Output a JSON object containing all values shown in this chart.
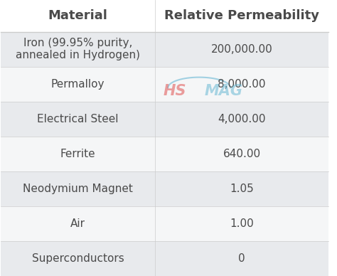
{
  "col1_header": "Material",
  "col2_header": "Relative Permeability",
  "rows": [
    [
      "Iron (99.95% purity,\nannealed in Hydrogen)",
      "200,000.00"
    ],
    [
      "Permalloy",
      "8,000.00"
    ],
    [
      "Electrical Steel",
      "4,000.00"
    ],
    [
      "Ferrite",
      "640.00"
    ],
    [
      "Neodymium Magnet",
      "1.05"
    ],
    [
      "Air",
      "1.00"
    ],
    [
      "Superconductors",
      "0"
    ]
  ],
  "header_bg": "#ffffff",
  "header_text_color": "#4a4a4a",
  "odd_row_bg": "#e8eaed",
  "even_row_bg": "#f5f6f7",
  "row_text_color": "#4a4a4a",
  "col_divider_color": "#cccccc",
  "row_divider_color": "#cccccc",
  "logo_hs_color": "#e05050",
  "logo_mag_color": "#6ab8d4",
  "font_size_header": 13,
  "font_size_row": 11
}
